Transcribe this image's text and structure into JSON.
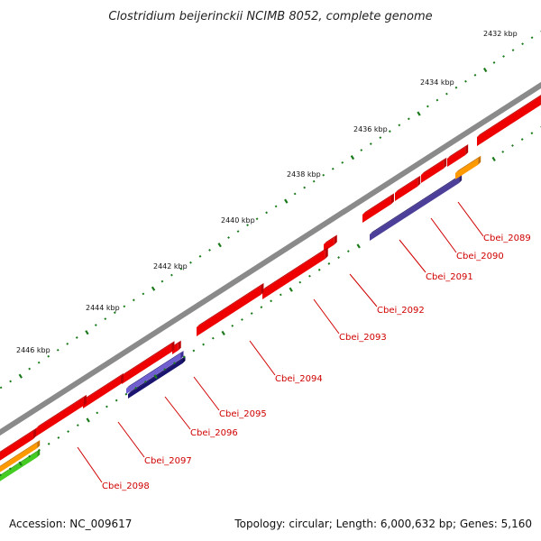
{
  "title": "Clostridium beijerinckii NCIMB 8052, complete genome",
  "footer": {
    "accession": "Accession: NC_009617",
    "summary": "Topology: circular; Length: 6,000,632 bp; Genes: 5,160"
  },
  "colors": {
    "backbone": "#8a8a8a",
    "cds": "#ee0000",
    "rna": "#4b3f9a",
    "orange": "#ff9900",
    "green": "#44cc22",
    "tick": "#1a7a1a",
    "label": "#d00000"
  },
  "ruler": {
    "unit": "kbp",
    "labels": [
      "2432 kbp",
      "2434 kbp",
      "2436 kbp",
      "2438 kbp",
      "2440 kbp",
      "2442 kbp",
      "2444 kbp",
      "2446 kbp"
    ]
  },
  "genes": [
    {
      "label": "Cbei_2089"
    },
    {
      "label": "Cbei_2090"
    },
    {
      "label": "Cbei_2091"
    },
    {
      "label": "Cbei_2092"
    },
    {
      "label": "Cbei_2093"
    },
    {
      "label": "Cbei_2094"
    },
    {
      "label": "Cbei_2095"
    },
    {
      "label": "Cbei_2096"
    },
    {
      "label": "Cbei_2097"
    },
    {
      "label": "Cbei_2098"
    }
  ]
}
